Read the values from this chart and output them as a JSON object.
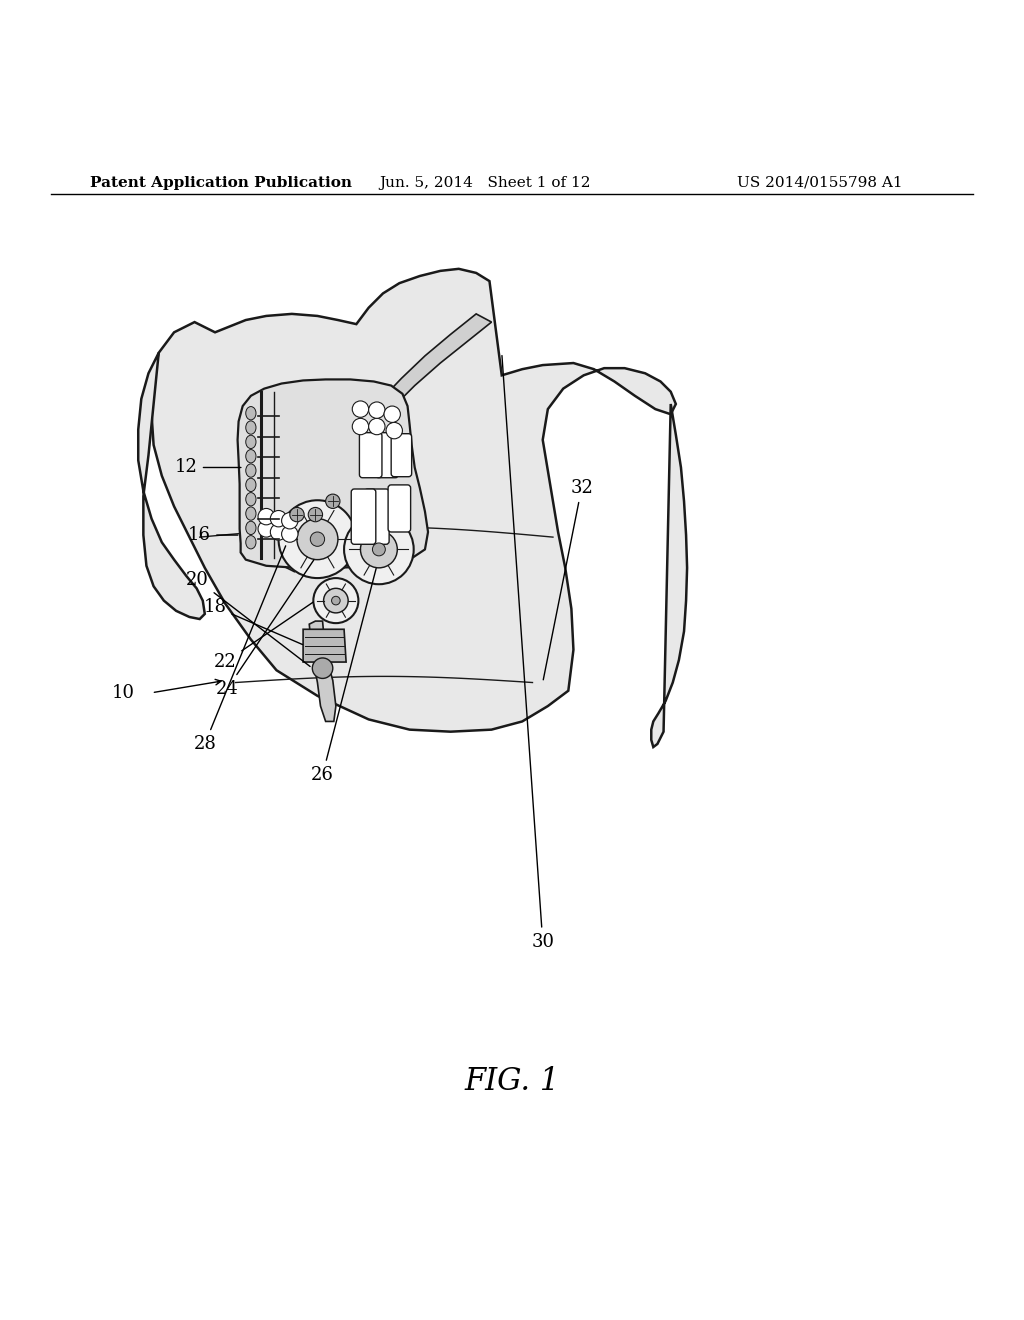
{
  "background_color": "#ffffff",
  "header_left": "Patent Application Publication",
  "header_center": "Jun. 5, 2014   Sheet 1 of 12",
  "header_right": "US 2014/0155798 A1",
  "figure_label": "FIG. 1",
  "line_color": "#1a1a1a",
  "text_color": "#000000",
  "header_fontsize": 11,
  "label_fontsize": 13,
  "fig_label_fontsize": 22
}
